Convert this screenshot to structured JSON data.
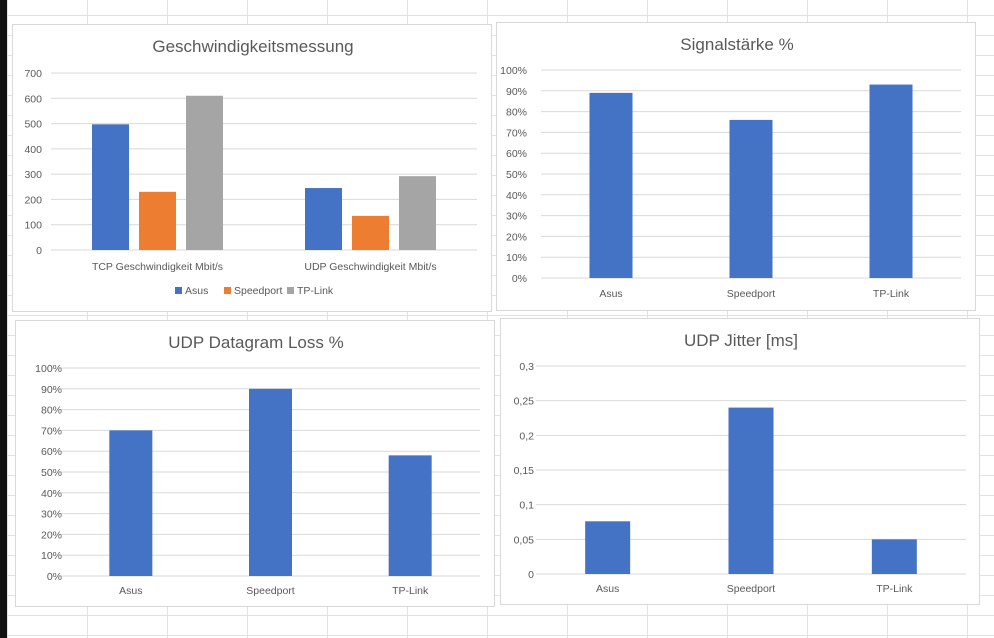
{
  "chart_data": [
    {
      "type": "bar",
      "title": "Geschwindigkeitsmessung",
      "categories": [
        "TCP Geschwindigkeit Mbit/s",
        "UDP Geschwindigkeit Mbit/s"
      ],
      "series": [
        {
          "name": "Asus",
          "color": "#4472c4",
          "values": [
            497,
            245
          ]
        },
        {
          "name": "Speedport",
          "color": "#ed7d31",
          "values": [
            230,
            135
          ]
        },
        {
          "name": "TP-Link",
          "color": "#a5a5a5",
          "values": [
            610,
            292
          ]
        }
      ],
      "ylim": [
        0,
        700
      ],
      "ticks": [
        "0",
        "100",
        "200",
        "300",
        "400",
        "500",
        "600",
        "700"
      ],
      "legend": "bottom",
      "grid": true
    },
    {
      "type": "bar",
      "title": "Signalstärke %",
      "categories": [
        "Asus",
        "Speedport",
        "TP-Link"
      ],
      "series": [
        {
          "name": "Signalstärke",
          "color": "#4472c4",
          "values": [
            89,
            76,
            93
          ]
        }
      ],
      "ylim": [
        0,
        100
      ],
      "ticks": [
        "0%",
        "10%",
        "20%",
        "30%",
        "40%",
        "50%",
        "60%",
        "70%",
        "80%",
        "90%",
        "100%"
      ],
      "grid": true
    },
    {
      "type": "bar",
      "title": "UDP Datagram Loss %",
      "categories": [
        "Asus",
        "Speedport",
        "TP-Link"
      ],
      "series": [
        {
          "name": "UDP Datagram Loss",
          "color": "#4472c4",
          "values": [
            70,
            90,
            58
          ]
        }
      ],
      "ylim": [
        0,
        100
      ],
      "ticks": [
        "0%",
        "10%",
        "20%",
        "30%",
        "40%",
        "50%",
        "60%",
        "70%",
        "80%",
        "90%",
        "100%"
      ],
      "grid": true
    },
    {
      "type": "bar",
      "title": "UDP Jitter [ms]",
      "categories": [
        "Asus",
        "Speedport",
        "TP-Link"
      ],
      "series": [
        {
          "name": "UDP Jitter",
          "color": "#4472c4",
          "values": [
            0.076,
            0.24,
            0.05
          ]
        }
      ],
      "ylim": [
        0,
        0.3
      ],
      "ticks": [
        "0",
        "0,05",
        "0,1",
        "0,15",
        "0,2",
        "0,25",
        "0,3"
      ],
      "grid": true
    }
  ]
}
